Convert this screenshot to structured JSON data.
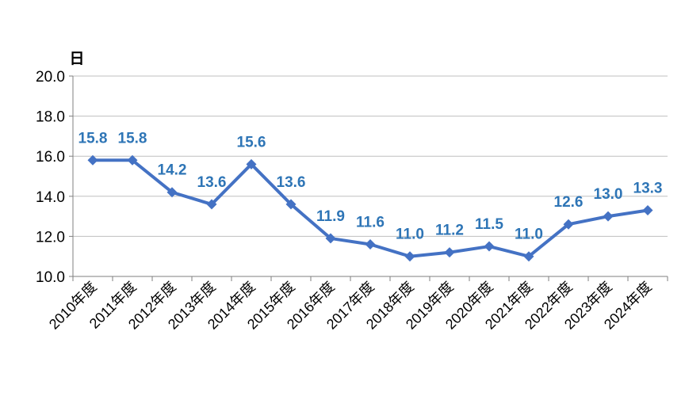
{
  "chart_data": {
    "type": "line",
    "title": "",
    "xlabel": "",
    "ylabel": "",
    "unit_label": "日",
    "ylim": [
      10.0,
      20.0
    ],
    "yticks": [
      "10.0",
      "12.0",
      "14.0",
      "16.0",
      "18.0",
      "20.0"
    ],
    "grid": true,
    "legend": "none",
    "categories": [
      "2010年度",
      "2011年度",
      "2012年度",
      "2013年度",
      "2014年度",
      "2015年度",
      "2016年度",
      "2017年度",
      "2018年度",
      "2019年度",
      "2020年度",
      "2021年度",
      "2022年度",
      "2023年度",
      "2024年度"
    ],
    "series": [
      {
        "values": [
          15.8,
          15.8,
          14.2,
          13.6,
          15.6,
          13.6,
          11.9,
          11.6,
          11.0,
          11.2,
          11.5,
          11.0,
          12.6,
          13.0,
          13.3
        ],
        "labels": [
          "15.8",
          "15.8",
          "14.2",
          "13.6",
          "15.6",
          "13.6",
          "11.9",
          "11.6",
          "11.0",
          "11.2",
          "11.5",
          "11.0",
          "12.6",
          "13.0",
          "13.3"
        ],
        "color": "#4472C4",
        "label_color": "#2E75B6",
        "marker": "diamond"
      }
    ]
  }
}
